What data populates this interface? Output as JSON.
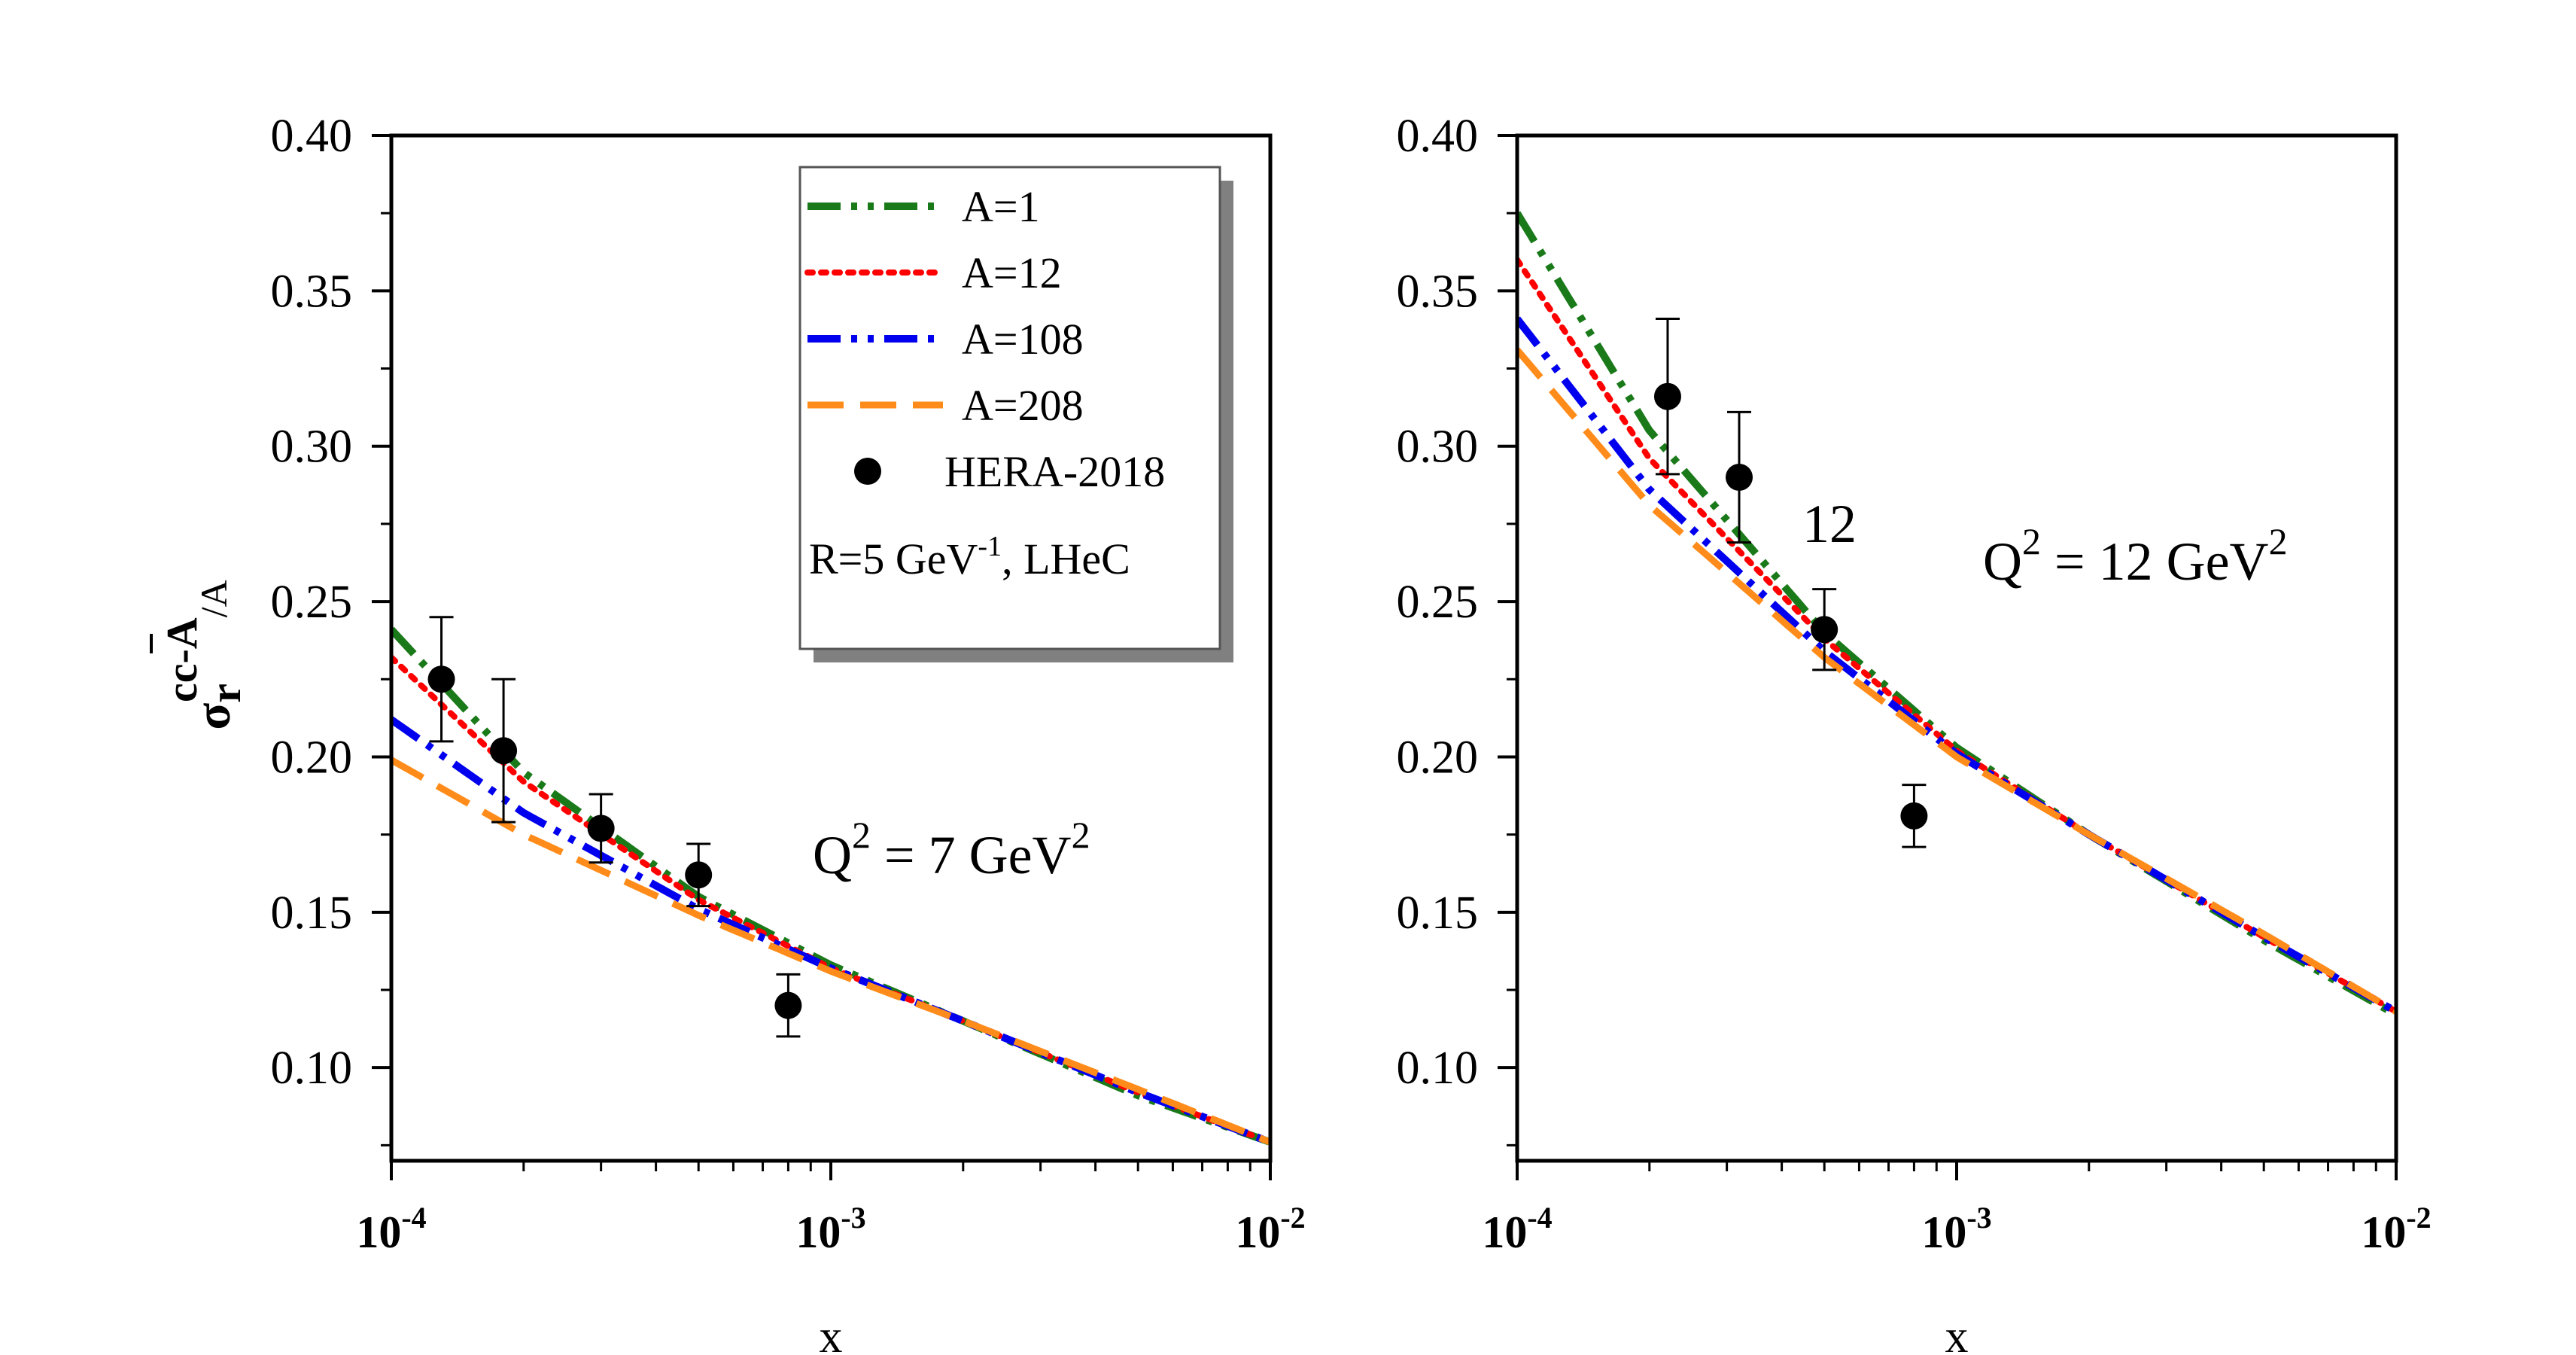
{
  "colors": {
    "A1": "#1a7a1a",
    "A12": "#ff0000",
    "A108": "#0000ee",
    "A208": "#ff8c1a",
    "data": "#000000"
  },
  "y_axis_title": {
    "sigma": "σ",
    "sub": "r",
    "sup": "cc-A",
    "suffix": "/A"
  },
  "legend": {
    "entries": [
      {
        "label": "A=1",
        "color": "#1a7a1a",
        "style": "dash-dot-dot"
      },
      {
        "label": "A=12",
        "color": "#ff0000",
        "style": "dotted"
      },
      {
        "label": "A=108",
        "color": "#0000ee",
        "style": "dash-dot-dot"
      },
      {
        "label": "A=208",
        "color": "#ff8c1a",
        "style": "dashed"
      }
    ],
    "data_label": "HERA-2018",
    "note_pre": "R=5 GeV",
    "note_sup": "-1",
    "note_post": ", LHeC"
  },
  "chart_data": [
    {
      "type": "line",
      "title": "",
      "xlabel": "x",
      "ylabel": "σ_r^{cc-A}/A",
      "xscale": "log",
      "xlim": [
        0.0001,
        0.01
      ],
      "ylim": [
        0.07,
        0.4
      ],
      "yticks": [
        "0.10",
        "0.15",
        "0.20",
        "0.25",
        "0.30",
        "0.35",
        "0.40"
      ],
      "xticks": [
        {
          "base": "10",
          "exp": "-4"
        },
        {
          "base": "10",
          "exp": "-3"
        },
        {
          "base": "10",
          "exp": "-2"
        }
      ],
      "annotation": {
        "pre": "Q",
        "sup1": "2",
        "mid": " = 7 GeV",
        "sup2": "2"
      },
      "extra_label": "",
      "series": [
        {
          "name": "A=1",
          "x": [
            0.0001,
            0.0002,
            0.0005,
            0.001,
            0.002,
            0.005,
            0.01
          ],
          "y": [
            0.241,
            0.195,
            0.155,
            0.133,
            0.115,
            0.091,
            0.076
          ]
        },
        {
          "name": "A=12",
          "x": [
            0.0001,
            0.0002,
            0.0005,
            0.001,
            0.002,
            0.005,
            0.01
          ],
          "y": [
            0.232,
            0.192,
            0.154,
            0.132,
            0.115,
            0.092,
            0.076
          ]
        },
        {
          "name": "A=108",
          "x": [
            0.0001,
            0.0002,
            0.0005,
            0.001,
            0.002,
            0.005,
            0.01
          ],
          "y": [
            0.212,
            0.182,
            0.151,
            0.132,
            0.115,
            0.092,
            0.076
          ]
        },
        {
          "name": "A=208",
          "x": [
            0.0001,
            0.0002,
            0.0005,
            0.001,
            0.002,
            0.005,
            0.01
          ],
          "y": [
            0.199,
            0.175,
            0.149,
            0.131,
            0.115,
            0.093,
            0.076
          ]
        }
      ],
      "points": {
        "name": "HERA-2018",
        "x": [
          0.00013,
          0.00018,
          0.0003,
          0.0005,
          0.0008
        ],
        "y": [
          0.225,
          0.202,
          0.177,
          0.162,
          0.12
        ],
        "err": [
          0.02,
          0.023,
          0.011,
          0.01,
          0.01
        ]
      }
    },
    {
      "type": "line",
      "title": "",
      "xlabel": "x",
      "ylabel": "",
      "xscale": "log",
      "xlim": [
        0.0001,
        0.01
      ],
      "ylim": [
        0.07,
        0.4
      ],
      "yticks": [
        "0.10",
        "0.15",
        "0.20",
        "0.25",
        "0.30",
        "0.35",
        "0.40"
      ],
      "xticks": [
        {
          "base": "10",
          "exp": "-4"
        },
        {
          "base": "10",
          "exp": "-3"
        },
        {
          "base": "10",
          "exp": "-2"
        }
      ],
      "annotation": {
        "pre": "Q",
        "sup1": "2",
        "mid": " = 12 GeV",
        "sup2": "2"
      },
      "extra_label": "12",
      "series": [
        {
          "name": "A=1",
          "x": [
            0.0001,
            0.0002,
            0.0005,
            0.001,
            0.002,
            0.005,
            0.01
          ],
          "y": [
            0.375,
            0.305,
            0.24,
            0.203,
            0.175,
            0.141,
            0.117
          ]
        },
        {
          "name": "A=12",
          "x": [
            0.0001,
            0.0002,
            0.0005,
            0.001,
            0.002,
            0.005,
            0.01
          ],
          "y": [
            0.36,
            0.296,
            0.238,
            0.202,
            0.175,
            0.142,
            0.118
          ]
        },
        {
          "name": "A=108",
          "x": [
            0.0001,
            0.0002,
            0.0005,
            0.001,
            0.002,
            0.005,
            0.01
          ],
          "y": [
            0.341,
            0.286,
            0.234,
            0.201,
            0.175,
            0.142,
            0.118
          ]
        },
        {
          "name": "A=208",
          "x": [
            0.0001,
            0.0002,
            0.0005,
            0.001,
            0.002,
            0.005,
            0.01
          ],
          "y": [
            0.331,
            0.281,
            0.232,
            0.2,
            0.175,
            0.143,
            0.118
          ]
        }
      ],
      "points": {
        "name": "HERA-2018",
        "x": [
          0.00022,
          0.00032,
          0.0005,
          0.0008
        ],
        "y": [
          0.316,
          0.29,
          0.241,
          0.181
        ],
        "err": [
          0.025,
          0.021,
          0.013,
          0.01
        ]
      }
    }
  ]
}
